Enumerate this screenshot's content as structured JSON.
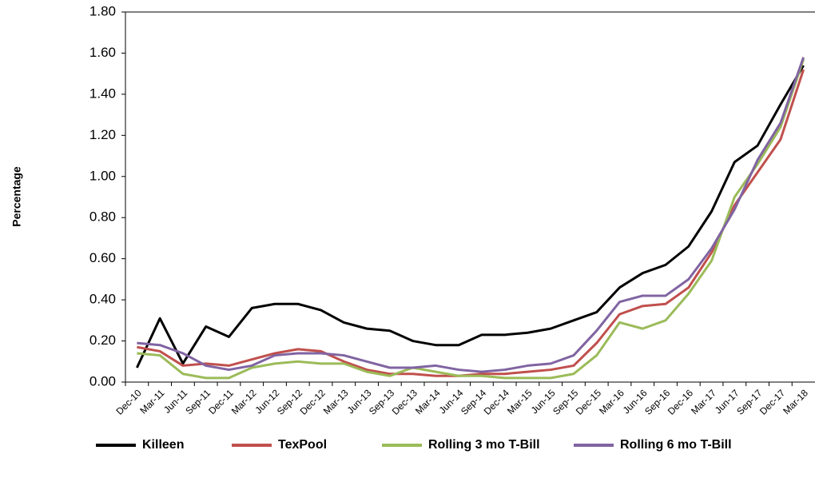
{
  "chart_data": {
    "type": "line",
    "y_label": "Percentage",
    "categories": [
      "Dec-10",
      "Mar-11",
      "Jun-11",
      "Sep-11",
      "Dec-11",
      "Mar-12",
      "Jun-12",
      "Sep-12",
      "Dec-12",
      "Mar-13",
      "Jun-13",
      "Sep-13",
      "Dec-13",
      "Mar-14",
      "Jun-14",
      "Sep-14",
      "Dec-14",
      "Mar-15",
      "Jun-15",
      "Sep-15",
      "Dec-15",
      "Mar-16",
      "Jun-16",
      "Sep-16",
      "Dec-16",
      "Mar-17",
      "Jun-17",
      "Sep-17",
      "Dec-17",
      "Mar-18"
    ],
    "series": [
      {
        "name": "Killeen",
        "color": "#000000",
        "values": [
          0.07,
          0.31,
          0.09,
          0.27,
          0.22,
          0.36,
          0.38,
          0.38,
          0.35,
          0.29,
          0.26,
          0.25,
          0.2,
          0.18,
          0.18,
          0.23,
          0.23,
          0.24,
          0.26,
          0.3,
          0.34,
          0.46,
          0.53,
          0.57,
          0.66,
          0.83,
          1.07,
          1.15,
          1.35,
          1.54
        ]
      },
      {
        "name": "TexPool",
        "color": "#c0504d",
        "values": [
          0.17,
          0.15,
          0.08,
          0.09,
          0.08,
          0.11,
          0.14,
          0.16,
          0.15,
          0.1,
          0.06,
          0.04,
          0.04,
          0.03,
          0.03,
          0.04,
          0.04,
          0.05,
          0.06,
          0.08,
          0.19,
          0.33,
          0.37,
          0.38,
          0.46,
          0.63,
          0.86,
          1.02,
          1.18,
          1.52
        ]
      },
      {
        "name": "Rolling 3 mo T-Bill",
        "color": "#9bbb59",
        "values": [
          0.14,
          0.13,
          0.04,
          0.02,
          0.02,
          0.07,
          0.09,
          0.1,
          0.09,
          0.09,
          0.05,
          0.03,
          0.07,
          0.05,
          0.03,
          0.03,
          0.02,
          0.02,
          0.02,
          0.04,
          0.13,
          0.29,
          0.26,
          0.3,
          0.43,
          0.59,
          0.9,
          1.06,
          1.24,
          1.57
        ]
      },
      {
        "name": "Rolling 6 mo T-Bill",
        "color": "#8064a2",
        "values": [
          0.19,
          0.18,
          0.14,
          0.08,
          0.06,
          0.08,
          0.13,
          0.14,
          0.14,
          0.13,
          0.1,
          0.07,
          0.07,
          0.08,
          0.06,
          0.05,
          0.06,
          0.08,
          0.09,
          0.13,
          0.25,
          0.39,
          0.42,
          0.42,
          0.5,
          0.65,
          0.84,
          1.08,
          1.26,
          1.58
        ]
      }
    ],
    "ylim": [
      0,
      1.8
    ],
    "yticks": [
      {
        "value": 0,
        "label": "0.00"
      },
      {
        "value": 0.2,
        "label": "0.20"
      },
      {
        "value": 0.4,
        "label": "0.40"
      },
      {
        "value": 0.6,
        "label": "0.60"
      },
      {
        "value": 0.8,
        "label": "0.80"
      },
      {
        "value": 1,
        "label": "1.00"
      },
      {
        "value": 1.2,
        "label": "1.20"
      },
      {
        "value": 1.4,
        "label": "1.40"
      },
      {
        "value": 1.6,
        "label": "1.60"
      },
      {
        "value": 1.8,
        "label": "1.80"
      }
    ],
    "grid": false,
    "legend": "bottom"
  }
}
